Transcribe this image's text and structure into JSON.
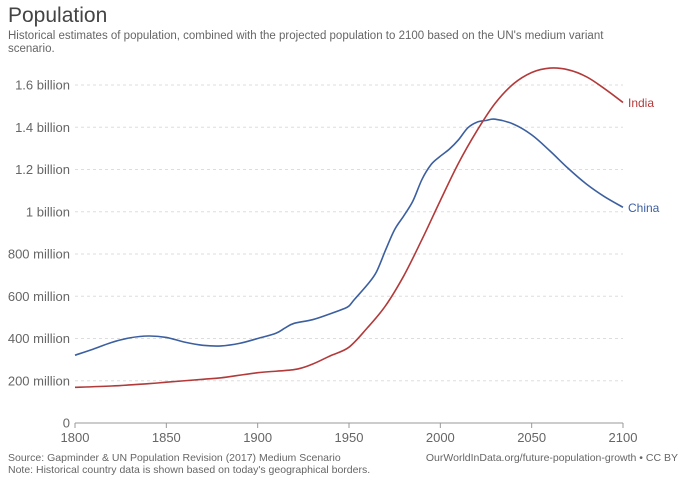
{
  "chart_data": {
    "type": "line",
    "title": "Population",
    "subtitle": "Historical estimates of population, combined with the projected population to 2100 based on the UN's medium variant scenario.",
    "xlabel": "",
    "ylabel": "",
    "xlim": [
      1800,
      2100
    ],
    "ylim": [
      0,
      1700000000
    ],
    "x_ticks": [
      1800,
      1850,
      1900,
      1950,
      2000,
      2050,
      2100
    ],
    "y_ticks": [
      0,
      200000000,
      400000000,
      600000000,
      800000000,
      1000000000,
      1200000000,
      1400000000,
      1600000000
    ],
    "y_tick_labels": [
      "0",
      "200 million",
      "400 million",
      "600 million",
      "800 million",
      "1 billion",
      "1.2 billion",
      "1.4 billion",
      "1.6 billion"
    ],
    "grid": "horizontal dashed",
    "legend": "line-end labels",
    "series": [
      {
        "name": "China",
        "color": "#3c5fa0",
        "points": [
          [
            1800,
            321000000
          ],
          [
            1810,
            350000000
          ],
          [
            1820,
            381000000
          ],
          [
            1830,
            403000000
          ],
          [
            1840,
            412000000
          ],
          [
            1850,
            405000000
          ],
          [
            1860,
            383000000
          ],
          [
            1870,
            368000000
          ],
          [
            1880,
            365000000
          ],
          [
            1890,
            377000000
          ],
          [
            1900,
            400000000
          ],
          [
            1910,
            425000000
          ],
          [
            1915,
            450000000
          ],
          [
            1920,
            472000000
          ],
          [
            1930,
            489000000
          ],
          [
            1940,
            518000000
          ],
          [
            1947,
            540000000
          ],
          [
            1950,
            554000000
          ],
          [
            1953,
            585000000
          ],
          [
            1960,
            654000000
          ],
          [
            1965,
            715000000
          ],
          [
            1970,
            818000000
          ],
          [
            1975,
            916000000
          ],
          [
            1980,
            981000000
          ],
          [
            1985,
            1051000000
          ],
          [
            1990,
            1154000000
          ],
          [
            1995,
            1224000000
          ],
          [
            2000,
            1263000000
          ],
          [
            2005,
            1297000000
          ],
          [
            2010,
            1341000000
          ],
          [
            2015,
            1397000000
          ],
          [
            2020,
            1424000000
          ],
          [
            2025,
            1432000000
          ],
          [
            2030,
            1438000000
          ],
          [
            2040,
            1415000000
          ],
          [
            2050,
            1364000000
          ],
          [
            2060,
            1288000000
          ],
          [
            2070,
            1205000000
          ],
          [
            2080,
            1131000000
          ],
          [
            2090,
            1071000000
          ],
          [
            2100,
            1021000000
          ]
        ],
        "end_label": "China"
      },
      {
        "name": "India",
        "color": "#b33a3a",
        "points": [
          [
            1800,
            169000000
          ],
          [
            1820,
            175000000
          ],
          [
            1840,
            186000000
          ],
          [
            1850,
            193000000
          ],
          [
            1870,
            207000000
          ],
          [
            1880,
            214000000
          ],
          [
            1900,
            238000000
          ],
          [
            1920,
            253000000
          ],
          [
            1930,
            279000000
          ],
          [
            1940,
            319000000
          ],
          [
            1950,
            359000000
          ],
          [
            1960,
            450000000
          ],
          [
            1970,
            555000000
          ],
          [
            1980,
            697000000
          ],
          [
            1990,
            870000000
          ],
          [
            2000,
            1053000000
          ],
          [
            2010,
            1231000000
          ],
          [
            2020,
            1383000000
          ],
          [
            2030,
            1513000000
          ],
          [
            2040,
            1605000000
          ],
          [
            2050,
            1659000000
          ],
          [
            2060,
            1680000000
          ],
          [
            2070,
            1672000000
          ],
          [
            2080,
            1639000000
          ],
          [
            2090,
            1582000000
          ],
          [
            2100,
            1517000000
          ]
        ],
        "end_label": "India"
      }
    ]
  },
  "footer": {
    "source": "Source: Gapminder & UN Population Revision (2017) Medium Scenario",
    "note": "Note: Historical country data is shown based on today's geographical borders.",
    "credit": "OurWorldInData.org/future-population-growth • CC BY"
  }
}
